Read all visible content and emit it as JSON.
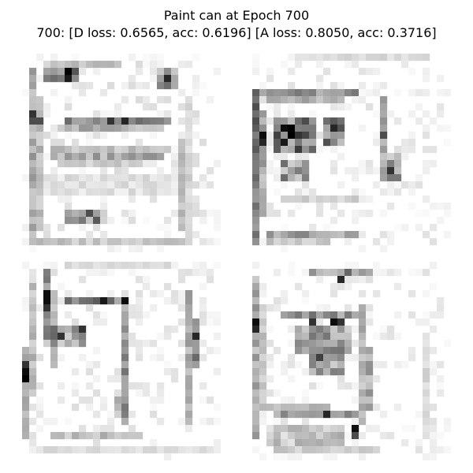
{
  "figure": {
    "title_line_1": "Paint can at Epoch 700",
    "title_line_2": "700: [D loss: 0.6565, acc: 0.6196]  [A loss: 0.8050, acc: 0.3716]"
  },
  "samples": {
    "count": 4,
    "colormap": "grayscale-inverted",
    "background_color": "#ffffff",
    "ink_color": "#000000"
  }
}
